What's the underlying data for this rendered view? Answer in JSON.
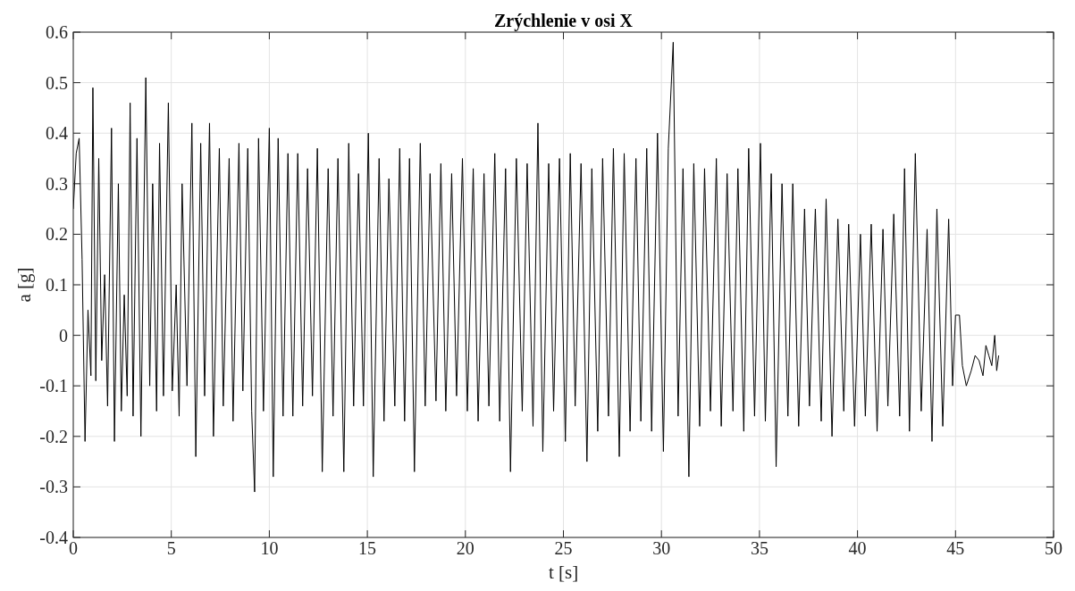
{
  "chart_data": {
    "type": "line",
    "title": "Zrýchlenie v osi X",
    "xlabel": "t [s]",
    "ylabel": "a [g]",
    "xlim": [
      0,
      50
    ],
    "ylim": [
      -0.4,
      0.6
    ],
    "xticks": [
      0,
      5,
      10,
      15,
      20,
      25,
      30,
      35,
      40,
      45,
      50
    ],
    "yticks": [
      -0.4,
      -0.3,
      -0.2,
      -0.1,
      {
        "value": 0,
        "label": "0"
      },
      0.1,
      0.2,
      0.3,
      0.4,
      0.5,
      0.6
    ],
    "grid": true,
    "series": [
      {
        "color": "#000000",
        "x": [
          0,
          0.15,
          0.3,
          0.45,
          0.6,
          0.75,
          0.9,
          1.0,
          1.15,
          1.3,
          1.45,
          1.6,
          1.75,
          1.95,
          2.1,
          2.3,
          2.45,
          2.6,
          2.75,
          2.9,
          3.05,
          3.25,
          3.45,
          3.7,
          3.9,
          4.05,
          4.25,
          4.4,
          4.6,
          4.85,
          5.05,
          5.25,
          5.4,
          5.55,
          5.8,
          6.05,
          6.25,
          6.5,
          6.7,
          6.95,
          7.15,
          7.45,
          7.65,
          7.95,
          8.15,
          8.45,
          8.65,
          8.9,
          9.1,
          9.25,
          9.45,
          9.7,
          10.0,
          10.2,
          10.45,
          10.7,
          10.95,
          11.2,
          11.45,
          11.7,
          11.95,
          12.2,
          12.45,
          12.7,
          13.0,
          13.25,
          13.5,
          13.8,
          14.05,
          14.3,
          14.55,
          14.8,
          15.05,
          15.3,
          15.6,
          15.85,
          16.1,
          16.4,
          16.65,
          16.9,
          17.15,
          17.4,
          17.7,
          17.95,
          18.2,
          18.5,
          18.75,
          19.0,
          19.3,
          19.55,
          19.85,
          20.1,
          20.4,
          20.65,
          20.95,
          21.2,
          21.5,
          21.75,
          22.05,
          22.3,
          22.6,
          22.9,
          23.15,
          23.45,
          23.7,
          23.95,
          24.25,
          24.5,
          24.8,
          25.1,
          25.35,
          25.6,
          25.9,
          26.2,
          26.45,
          26.75,
          27.0,
          27.3,
          27.55,
          27.85,
          28.1,
          28.4,
          28.7,
          28.95,
          29.25,
          29.5,
          29.8,
          30.1,
          30.35,
          30.6,
          30.85,
          31.1,
          31.4,
          31.65,
          31.95,
          32.2,
          32.5,
          32.8,
          33.05,
          33.35,
          33.65,
          33.9,
          34.2,
          34.45,
          34.75,
          35.05,
          35.3,
          35.6,
          35.85,
          36.15,
          36.45,
          36.7,
          37.0,
          37.3,
          37.55,
          37.85,
          38.15,
          38.4,
          38.7,
          39.0,
          39.3,
          39.55,
          39.85,
          40.15,
          40.4,
          40.7,
          41.0,
          41.3,
          41.55,
          41.85,
          42.15,
          42.4,
          42.65,
          42.95,
          43.25,
          43.55,
          43.8,
          44.05,
          44.35,
          44.65,
          44.85,
          45.0,
          45.2,
          45.35,
          45.55,
          45.8,
          46.0,
          46.2,
          46.4,
          46.55,
          46.7,
          46.85,
          47.0,
          47.1,
          47.2
        ],
        "values": [
          0.25,
          0.36,
          0.39,
          0.15,
          -0.21,
          0.05,
          -0.08,
          0.49,
          -0.09,
          0.35,
          -0.05,
          0.12,
          -0.14,
          0.41,
          -0.21,
          0.3,
          -0.15,
          0.08,
          -0.12,
          0.46,
          -0.16,
          0.39,
          -0.2,
          0.51,
          -0.1,
          0.3,
          -0.15,
          0.38,
          -0.12,
          0.46,
          -0.11,
          0.1,
          -0.16,
          0.3,
          -0.1,
          0.42,
          -0.24,
          0.38,
          -0.12,
          0.42,
          -0.2,
          0.37,
          -0.14,
          0.35,
          -0.17,
          0.38,
          -0.11,
          0.37,
          -0.15,
          -0.31,
          0.39,
          -0.15,
          0.41,
          -0.28,
          0.39,
          -0.16,
          0.36,
          -0.16,
          0.36,
          -0.14,
          0.33,
          -0.12,
          0.37,
          -0.27,
          0.33,
          -0.16,
          0.35,
          -0.27,
          0.38,
          -0.14,
          0.32,
          -0.14,
          0.4,
          -0.28,
          0.35,
          -0.17,
          0.31,
          -0.14,
          0.37,
          -0.17,
          0.35,
          -0.27,
          0.38,
          -0.14,
          0.32,
          -0.13,
          0.34,
          -0.15,
          0.32,
          -0.12,
          0.35,
          -0.15,
          0.33,
          -0.17,
          0.32,
          -0.14,
          0.36,
          -0.17,
          0.33,
          -0.27,
          0.35,
          -0.15,
          0.34,
          -0.18,
          0.42,
          -0.23,
          0.34,
          -0.15,
          0.35,
          -0.21,
          0.36,
          -0.14,
          0.34,
          -0.25,
          0.33,
          -0.19,
          0.35,
          -0.16,
          0.37,
          -0.24,
          0.36,
          -0.19,
          0.35,
          -0.17,
          0.37,
          -0.19,
          0.4,
          -0.23,
          0.37,
          0.58,
          -0.16,
          0.33,
          -0.28,
          0.34,
          -0.18,
          0.33,
          -0.15,
          0.35,
          -0.18,
          0.32,
          -0.15,
          0.33,
          -0.19,
          0.37,
          -0.16,
          0.38,
          -0.17,
          0.32,
          -0.26,
          0.3,
          -0.16,
          0.3,
          -0.18,
          0.25,
          -0.14,
          0.25,
          -0.17,
          0.27,
          -0.2,
          0.23,
          -0.15,
          0.22,
          -0.18,
          0.2,
          -0.16,
          0.22,
          -0.19,
          0.21,
          -0.14,
          0.24,
          -0.16,
          0.33,
          -0.19,
          0.36,
          -0.15,
          0.21,
          -0.21,
          0.25,
          -0.18,
          0.23,
          -0.1,
          0.04,
          0.04,
          -0.06,
          -0.1,
          -0.07,
          -0.04,
          -0.05,
          -0.08,
          -0.02,
          -0.04,
          -0.06,
          0.0,
          -0.07,
          -0.04
        ]
      }
    ]
  }
}
